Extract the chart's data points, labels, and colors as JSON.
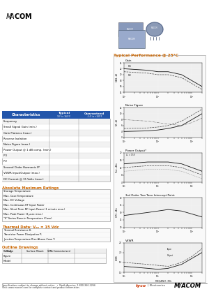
{
  "bg_color": "#ffffff",
  "typical_perf_title": "Typical Performance @ 25°C",
  "typical_perf_color": "#cc6600",
  "table_header_color": "#2255aa",
  "table_header_text_color": "#ffffff",
  "characteristics": [
    "Frequency",
    "Small Signal Gain (min.)",
    "Gain Flatness (max.)",
    "Reverse Isolation",
    "Noise Figure (max.)",
    "Power Output @ 1 dB comp. (min.)",
    "IP3",
    "IP2",
    "Second Order Harmonic IP",
    "VSWR Input/Output (max.)",
    "DC Current @ 15 Volts (max.)"
  ],
  "abs_max_title": "Absolute Maximum Ratings",
  "section_color": "#cc6600",
  "abs_max_items": [
    "Storage Temperature",
    "Max. Case Temperature",
    "Max. DC Voltage",
    "Max. Continuous RF Input Power",
    "Max. Short Term RF Input Power (1 minute max.)",
    "Max. Peak Power (3 µsec max.)",
    "\"S\" Series Base-in Temperature (Case)"
  ],
  "thermal_title": "Thermal Data: Vₒₑ = 15 Vdc",
  "thermal_items": [
    "Thermal Resistance θⱼ",
    "Transistor Power Dissipation Pⱼ",
    "Junction Temperature Rise Above Case Tⱼ"
  ],
  "outline_title": "Outline Drawings",
  "footer_text": "Specifications subject to change without notice.  •  North America: 1-800-366-2266",
  "footer_text2": "Visit: www.macom.com for complete contact and product information.",
  "gain_title": "Gain",
  "nf_title": "Noise Figure",
  "po_title": "Power Output*",
  "ip3_title": "3rd Order Two Tone Intercept Point",
  "vswr_title": "VSWR",
  "freq_xlabel": "FREQUENCY - MHz"
}
